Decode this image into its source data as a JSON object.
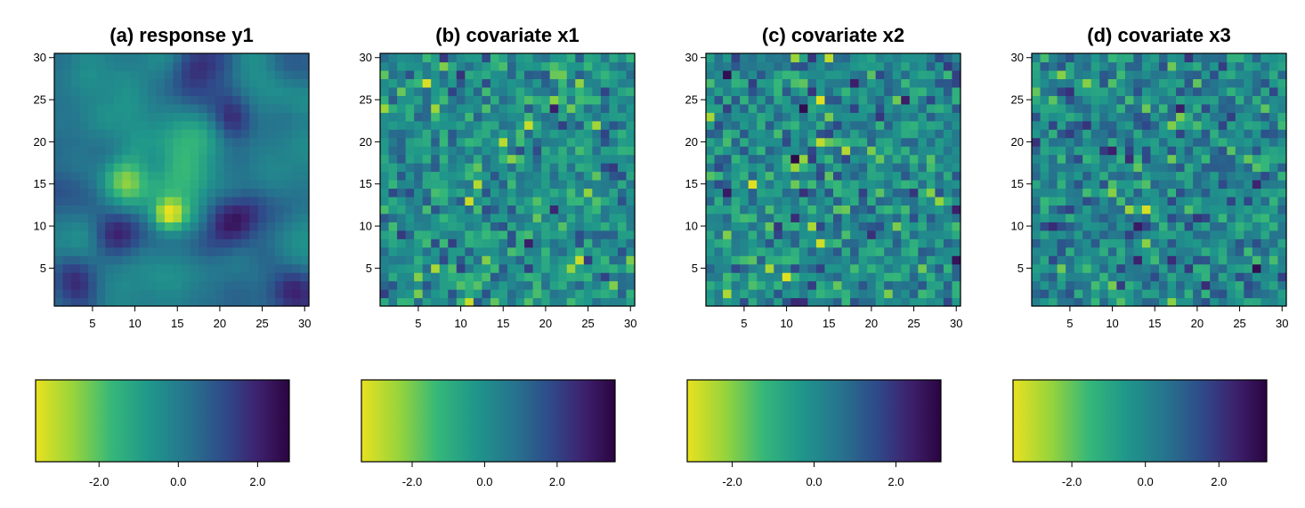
{
  "chart_data": [
    {
      "type": "heatmap",
      "title": "(a) response y1",
      "xlabel": "",
      "ylabel": "",
      "grid_size": 30,
      "xlim": [
        0.5,
        30.5
      ],
      "ylim": [
        0.5,
        30.5
      ],
      "xticks": [
        5,
        10,
        15,
        20,
        25,
        30
      ],
      "yticks": [
        5,
        10,
        15,
        20,
        25,
        30
      ],
      "smooth": true,
      "color_range": [
        -3.6,
        2.8
      ],
      "colorbar": {
        "min": -3.6,
        "max": 2.8,
        "ticks": [
          -2.0,
          0.0,
          2.0
        ],
        "tick_labels": [
          "-2.0",
          "0.0",
          "2.0"
        ]
      },
      "features": [
        {
          "x": 14,
          "y": 11.5,
          "v": -3.4,
          "s": 1.3
        },
        {
          "x": 9,
          "y": 15.5,
          "v": -2.4,
          "s": 2.0
        },
        {
          "x": 16,
          "y": 15,
          "v": -1.8,
          "s": 2.5
        },
        {
          "x": 18,
          "y": 20.5,
          "v": -1.6,
          "s": 2.5
        },
        {
          "x": 8,
          "y": 9,
          "v": 2.0,
          "s": 2.2
        },
        {
          "x": 21.5,
          "y": 10.5,
          "v": 2.3,
          "s": 2.5
        },
        {
          "x": 21,
          "y": 22.5,
          "v": 2.2,
          "s": 2.0
        },
        {
          "x": 17,
          "y": 29,
          "v": 2.0,
          "s": 2.2
        },
        {
          "x": 3,
          "y": 4,
          "v": 1.8,
          "s": 2.0
        },
        {
          "x": 28,
          "y": 2.5,
          "v": 1.5,
          "s": 2.0
        }
      ],
      "colormap": "viridis_reversed"
    },
    {
      "type": "heatmap",
      "title": "(b) covariate x1",
      "xlabel": "",
      "ylabel": "",
      "grid_size": 30,
      "xlim": [
        0.5,
        30.5
      ],
      "ylim": [
        0.5,
        30.5
      ],
      "xticks": [
        5,
        10,
        15,
        20,
        25,
        30
      ],
      "yticks": [
        5,
        10,
        15,
        20,
        25,
        30
      ],
      "smooth": false,
      "color_range": [
        -3.4,
        3.6
      ],
      "colorbar": {
        "min": -3.4,
        "max": 3.6,
        "ticks": [
          -2.0,
          0.0,
          2.0
        ],
        "tick_labels": [
          "-2.0",
          "0.0",
          "2.0"
        ]
      },
      "features": [
        {
          "x": 6,
          "y": 27,
          "v": -3.2,
          "s": 0
        },
        {
          "x": 18,
          "y": 22,
          "v": -3.0,
          "s": 0
        },
        {
          "x": 11,
          "y": 13,
          "v": -3.0,
          "s": 0
        },
        {
          "x": 24,
          "y": 6,
          "v": -3.0,
          "s": 0
        },
        {
          "x": 15,
          "y": 20,
          "v": -2.8,
          "s": 0
        },
        {
          "x": 21,
          "y": 12,
          "v": 2.6,
          "s": 0
        },
        {
          "x": 11,
          "y": 1,
          "v": -3.0,
          "s": 0
        }
      ],
      "colormap": "viridis_reversed"
    },
    {
      "type": "heatmap",
      "title": "(c) covariate x2",
      "xlabel": "",
      "ylabel": "",
      "grid_size": 30,
      "xlim": [
        0.5,
        30.5
      ],
      "ylim": [
        0.5,
        30.5
      ],
      "xticks": [
        5,
        10,
        15,
        20,
        25,
        30
      ],
      "yticks": [
        5,
        10,
        15,
        20,
        25,
        30
      ],
      "smooth": false,
      "color_range": [
        -3.1,
        3.1
      ],
      "colorbar": {
        "min": -3.1,
        "max": 3.1,
        "ticks": [
          -2.0,
          0.0,
          2.0
        ],
        "tick_labels": [
          "-2.0",
          "0.0",
          "2.0"
        ]
      },
      "features": [
        {
          "x": 6,
          "y": 15,
          "v": -3.0,
          "s": 0
        },
        {
          "x": 14,
          "y": 25,
          "v": -3.0,
          "s": 0
        },
        {
          "x": 10,
          "y": 4,
          "v": -3.0,
          "s": 0
        },
        {
          "x": 14,
          "y": 8,
          "v": -2.8,
          "s": 0
        },
        {
          "x": 11,
          "y": 17,
          "v": -2.2,
          "s": 0
        },
        {
          "x": 13,
          "y": 10,
          "v": -2.4,
          "s": 0
        },
        {
          "x": 3,
          "y": 28,
          "v": 2.8,
          "s": 0
        }
      ],
      "colormap": "viridis_reversed"
    },
    {
      "type": "heatmap",
      "title": "(d) covariate x3",
      "xlabel": "",
      "ylabel": "",
      "grid_size": 30,
      "xlim": [
        0.5,
        30.5
      ],
      "ylim": [
        0.5,
        30.5
      ],
      "xticks": [
        5,
        10,
        15,
        20,
        25,
        30
      ],
      "yticks": [
        5,
        10,
        15,
        20,
        25,
        30
      ],
      "smooth": false,
      "color_range": [
        -3.6,
        3.3
      ],
      "colorbar": {
        "min": -3.6,
        "max": 3.3,
        "ticks": [
          -2.0,
          0.0,
          2.0
        ],
        "tick_labels": [
          "-2.0",
          "0.0",
          "2.0"
        ]
      },
      "features": [
        {
          "x": 14,
          "y": 12,
          "v": -3.4,
          "s": 0
        },
        {
          "x": 10,
          "y": 14,
          "v": -2.4,
          "s": 0
        },
        {
          "x": 12,
          "y": 12,
          "v": -2.6,
          "s": 0
        },
        {
          "x": 7,
          "y": 27,
          "v": -2.4,
          "s": 0
        },
        {
          "x": 10,
          "y": 3,
          "v": -2.2,
          "s": 0
        },
        {
          "x": 27,
          "y": 5,
          "v": 3.0,
          "s": 0
        }
      ],
      "colormap": "viridis_reversed"
    }
  ],
  "colors": {
    "low": "#e8e11f",
    "mid_low": "#25b05a",
    "mid": "#1f8e8a",
    "mid_high": "#0e3f6e",
    "high": "#2a0640",
    "axis": "#000000"
  }
}
